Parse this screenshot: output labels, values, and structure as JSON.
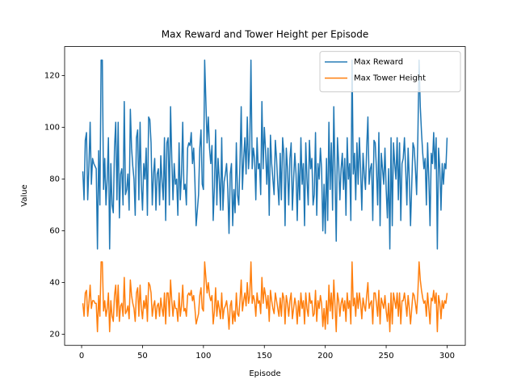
{
  "chart_data": {
    "type": "line",
    "title": "Max Reward and Tower Height per Episode",
    "x_label": "Episode",
    "y_label": "Value",
    "x": [
      1,
      2,
      3,
      4,
      5,
      6,
      7,
      8,
      9,
      10,
      11,
      12,
      13,
      14,
      15,
      16,
      17,
      18,
      19,
      20,
      21,
      22,
      23,
      24,
      25,
      26,
      27,
      28,
      29,
      30,
      31,
      32,
      33,
      34,
      35,
      36,
      37,
      38,
      39,
      40,
      41,
      42,
      43,
      44,
      45,
      46,
      47,
      48,
      49,
      50,
      51,
      52,
      53,
      54,
      55,
      56,
      57,
      58,
      59,
      60,
      61,
      62,
      63,
      64,
      65,
      66,
      67,
      68,
      69,
      70,
      71,
      72,
      73,
      74,
      75,
      76,
      77,
      78,
      79,
      80,
      81,
      82,
      83,
      84,
      85,
      86,
      87,
      88,
      89,
      90,
      91,
      92,
      93,
      94,
      95,
      96,
      97,
      98,
      99,
      100,
      101,
      102,
      103,
      104,
      105,
      106,
      107,
      108,
      109,
      110,
      111,
      112,
      113,
      114,
      115,
      116,
      117,
      118,
      119,
      120,
      121,
      122,
      123,
      124,
      125,
      126,
      127,
      128,
      129,
      130,
      131,
      132,
      133,
      134,
      135,
      136,
      137,
      138,
      139,
      140,
      141,
      142,
      143,
      144,
      145,
      146,
      147,
      148,
      149,
      150,
      151,
      152,
      153,
      154,
      155,
      156,
      157,
      158,
      159,
      160,
      161,
      162,
      163,
      164,
      165,
      166,
      167,
      168,
      169,
      170,
      171,
      172,
      173,
      174,
      175,
      176,
      177,
      178,
      179,
      180,
      181,
      182,
      183,
      184,
      185,
      186,
      187,
      188,
      189,
      190,
      191,
      192,
      193,
      194,
      195,
      196,
      197,
      198,
      199,
      200,
      201,
      202,
      203,
      204,
      205,
      206,
      207,
      208,
      209,
      210,
      211,
      212,
      213,
      214,
      215,
      216,
      217,
      218,
      219,
      220,
      221,
      222,
      223,
      224,
      225,
      226,
      227,
      228,
      229,
      230,
      231,
      232,
      233,
      234,
      235,
      236,
      237,
      238,
      239,
      240,
      241,
      242,
      243,
      244,
      245,
      246,
      247,
      248,
      249,
      250,
      251,
      252,
      253,
      254,
      255,
      256,
      257,
      258,
      259,
      260,
      261,
      262,
      263,
      264,
      265,
      266,
      267,
      268,
      269,
      270,
      271,
      272,
      273,
      274,
      275,
      276,
      277,
      278,
      279,
      280,
      281,
      282,
      283,
      284,
      285,
      286,
      287,
      288,
      289,
      290,
      291,
      292,
      293,
      294,
      295,
      296,
      297,
      298,
      299,
      300
    ],
    "series": [
      {
        "name": "Max Reward",
        "color": "#1f77b4",
        "values": [
          83,
          72,
          95,
          98,
          72,
          85,
          102,
          78,
          88,
          86,
          85,
          84,
          53,
          91,
          70,
          126,
          126,
          76,
          88,
          70,
          80,
          96,
          53,
          86,
          70,
          67,
          92,
          102,
          72,
          102,
          65,
          82,
          84,
          70,
          110,
          74,
          76,
          82,
          68,
          107,
          92,
          85,
          80,
          66,
          96,
          99,
          72,
          102,
          78,
          68,
          86,
          80,
          92,
          66,
          104,
          103,
          94,
          70,
          82,
          88,
          68,
          82,
          84,
          70,
          89,
          79,
          72,
          96,
          64,
          94,
          96,
          70,
          108,
          88,
          72,
          86,
          78,
          80,
          66,
          94,
          72,
          82,
          102,
          76,
          78,
          70,
          92,
          94,
          93,
          98,
          86,
          92,
          79,
          62,
          68,
          74,
          92,
          99,
          78,
          76,
          126,
          110,
          94,
          104,
          92,
          86,
          93,
          64,
          77,
          99,
          70,
          88,
          80,
          68,
          96,
          68,
          79,
          82,
          86,
          76,
          59,
          82,
          86,
          62,
          76,
          67,
          94,
          74,
          70,
          86,
          108,
          76,
          88,
          96,
          82,
          104,
          84,
          92,
          126,
          84,
          92,
          88,
          72,
          96,
          84,
          86,
          74,
          110,
          84,
          100,
          91,
          78,
          92,
          66,
          97,
          86,
          80,
          74,
          95,
          88,
          78,
          70,
          90,
          72,
          96,
          90,
          62,
          92,
          84,
          70,
          88,
          94,
          68,
          80,
          90,
          82,
          64,
          86,
          72,
          96,
          78,
          86,
          62,
          94,
          80,
          70,
          95,
          84,
          88,
          70,
          74,
          98,
          66,
          86,
          80,
          92,
          84,
          60,
          78,
          59,
          88,
          64,
          102,
          76,
          94,
          68,
          108,
          82,
          56,
          96,
          86,
          72,
          84,
          90,
          76,
          88,
          66,
          96,
          80,
          86,
          64,
          126,
          82,
          90,
          72,
          94,
          78,
          96,
          84,
          68,
          90,
          82,
          76,
          92,
          104,
          78,
          84,
          86,
          64,
          95,
          94,
          84,
          70,
          98,
          62,
          90,
          84,
          78,
          92,
          76,
          65,
          84,
          53,
          96,
          62,
          94,
          86,
          80,
          96,
          72,
          94,
          64,
          86,
          88,
          96,
          84,
          70,
          92,
          80,
          62,
          78,
          94,
          92,
          84,
          74,
          96,
          126,
          108,
          98,
          90,
          84,
          88,
          70,
          94,
          80,
          62,
          90,
          86,
          98,
          84,
          96,
          53,
          92,
          84,
          68,
          86,
          78,
          86,
          84,
          96
        ]
      },
      {
        "name": "Max Tower Height",
        "color": "#ff7f0e",
        "values": [
          32,
          27,
          36,
          37,
          27,
          32,
          39,
          30,
          33,
          33,
          32,
          32,
          21,
          35,
          27,
          48,
          48,
          29,
          33,
          27,
          30,
          36,
          21,
          33,
          27,
          25,
          35,
          39,
          27,
          39,
          25,
          31,
          32,
          27,
          42,
          28,
          29,
          31,
          26,
          41,
          35,
          32,
          30,
          25,
          36,
          38,
          27,
          39,
          30,
          26,
          33,
          30,
          35,
          25,
          40,
          39,
          36,
          27,
          31,
          33,
          26,
          31,
          32,
          27,
          34,
          30,
          27,
          36,
          24,
          36,
          36,
          27,
          41,
          33,
          27,
          33,
          30,
          30,
          25,
          36,
          27,
          31,
          39,
          29,
          30,
          27,
          35,
          36,
          35,
          37,
          33,
          35,
          30,
          24,
          26,
          28,
          35,
          38,
          30,
          29,
          48,
          42,
          36,
          40,
          35,
          33,
          35,
          24,
          29,
          38,
          27,
          33,
          30,
          26,
          36,
          26,
          30,
          31,
          33,
          29,
          22,
          31,
          33,
          24,
          29,
          25,
          36,
          28,
          27,
          33,
          41,
          29,
          33,
          36,
          31,
          40,
          32,
          35,
          48,
          32,
          35,
          33,
          27,
          36,
          32,
          33,
          28,
          42,
          32,
          38,
          35,
          30,
          35,
          25,
          37,
          33,
          30,
          28,
          36,
          33,
          30,
          27,
          34,
          27,
          36,
          34,
          24,
          35,
          32,
          27,
          33,
          36,
          26,
          30,
          34,
          31,
          24,
          33,
          27,
          36,
          30,
          33,
          24,
          36,
          30,
          27,
          36,
          32,
          33,
          27,
          28,
          37,
          25,
          33,
          30,
          35,
          32,
          23,
          30,
          22,
          33,
          24,
          39,
          29,
          36,
          26,
          41,
          31,
          21,
          36,
          33,
          27,
          32,
          34,
          29,
          33,
          25,
          36,
          30,
          33,
          24,
          48,
          31,
          34,
          27,
          36,
          30,
          36,
          32,
          26,
          34,
          31,
          29,
          35,
          40,
          30,
          32,
          33,
          24,
          36,
          36,
          32,
          27,
          37,
          24,
          34,
          32,
          30,
          35,
          29,
          25,
          32,
          21,
          36,
          24,
          36,
          33,
          30,
          36,
          27,
          36,
          24,
          33,
          33,
          36,
          32,
          27,
          35,
          30,
          24,
          30,
          36,
          35,
          32,
          28,
          36,
          48,
          41,
          37,
          34,
          32,
          33,
          27,
          36,
          30,
          24,
          34,
          33,
          37,
          32,
          36,
          21,
          35,
          32,
          26,
          33,
          30,
          33,
          32,
          36
        ]
      }
    ],
    "xlim": [
      -13.95,
      314.95
    ],
    "xticks": [
      0,
      50,
      100,
      150,
      200,
      250,
      300
    ],
    "ylim": [
      15.75,
      131.25
    ],
    "yticks": [
      20,
      40,
      60,
      80,
      100,
      120
    ],
    "legend": "upper right"
  }
}
